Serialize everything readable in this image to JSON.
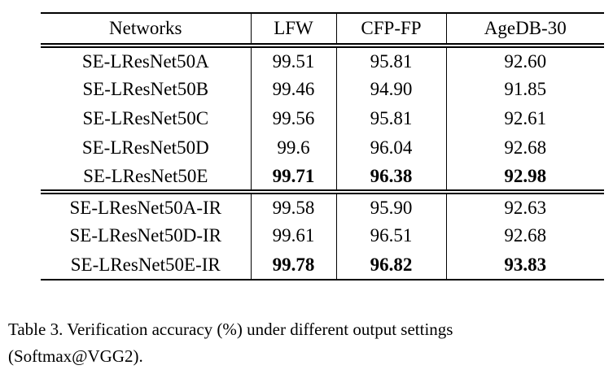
{
  "table": {
    "columns": [
      "Networks",
      "LFW",
      "CFP-FP",
      "AgeDB-30"
    ],
    "sections": [
      {
        "rows": [
          {
            "network": "SE-LResNet50A",
            "values": [
              "99.51",
              "95.81",
              "92.60"
            ],
            "bold": false
          },
          {
            "network": "SE-LResNet50B",
            "values": [
              "99.46",
              "94.90",
              "91.85"
            ],
            "bold": false
          },
          {
            "network": "SE-LResNet50C",
            "values": [
              "99.56",
              "95.81",
              "92.61"
            ],
            "bold": false
          },
          {
            "network": "SE-LResNet50D",
            "values": [
              "99.6",
              "96.04",
              "92.68"
            ],
            "bold": false
          },
          {
            "network": "SE-LResNet50E",
            "values": [
              "99.71",
              "96.38",
              "92.98"
            ],
            "bold": true
          }
        ]
      },
      {
        "rows": [
          {
            "network": "SE-LResNet50A-IR",
            "values": [
              "99.58",
              "95.90",
              "92.63"
            ],
            "bold": false
          },
          {
            "network": "SE-LResNet50D-IR",
            "values": [
              "99.61",
              "96.51",
              "92.68"
            ],
            "bold": false
          },
          {
            "network": "SE-LResNet50E-IR",
            "values": [
              "99.78",
              "96.82",
              "93.83"
            ],
            "bold": true
          }
        ]
      }
    ]
  },
  "caption": {
    "line1": "Table 3. Verification accuracy (%) under different output settings",
    "line2": "(Softmax@VGG2)."
  },
  "colors": {
    "text": "#000000",
    "background": "#ffffff",
    "rule": "#000000"
  }
}
